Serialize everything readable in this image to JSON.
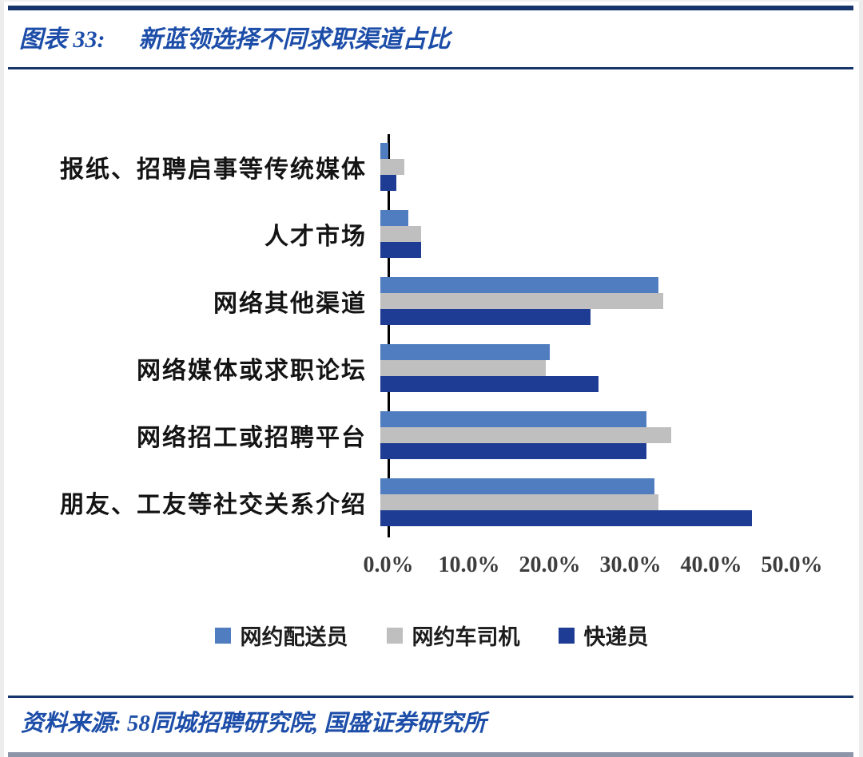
{
  "header": {
    "label": "图表 33:",
    "title": "新蓝领选择不同求职渠道占比"
  },
  "footer": {
    "source": "资料来源: 58同城招聘研究院, 国盛证券研究所"
  },
  "colors": {
    "rule_navy": "#16356b",
    "title_blue": "#1c4da8",
    "series_blue": "#4f7dc0",
    "series_gray": "#bfbfbf",
    "series_navy": "#1e3c94"
  },
  "chart_data": {
    "type": "bar",
    "orientation": "horizontal",
    "title": "新蓝领选择不同求职渠道占比",
    "categories": [
      "报纸、招聘启事等传统媒体",
      "人才市场",
      "网络其他渠道",
      "网络媒体或求职论坛",
      "网络招工或招聘平台",
      "朋友、工友等社交关系介绍"
    ],
    "series": [
      {
        "name": "网约配送员",
        "color": "#4f7dc0",
        "values": [
          1.0,
          3.5,
          34.5,
          21.0,
          33.0,
          34.0
        ]
      },
      {
        "name": "网约车司机",
        "color": "#bfbfbf",
        "values": [
          3.0,
          5.0,
          35.0,
          20.5,
          36.0,
          34.5
        ]
      },
      {
        "name": "快递员",
        "color": "#1e3c94",
        "values": [
          2.0,
          5.0,
          26.0,
          27.0,
          33.0,
          46.0
        ]
      }
    ],
    "x_ticks": [
      "0.0%",
      "10.0%",
      "20.0%",
      "30.0%",
      "40.0%",
      "50.0%"
    ],
    "xlim": [
      0,
      50
    ],
    "tick_step": 10,
    "legend_position": "bottom",
    "grid": false
  }
}
